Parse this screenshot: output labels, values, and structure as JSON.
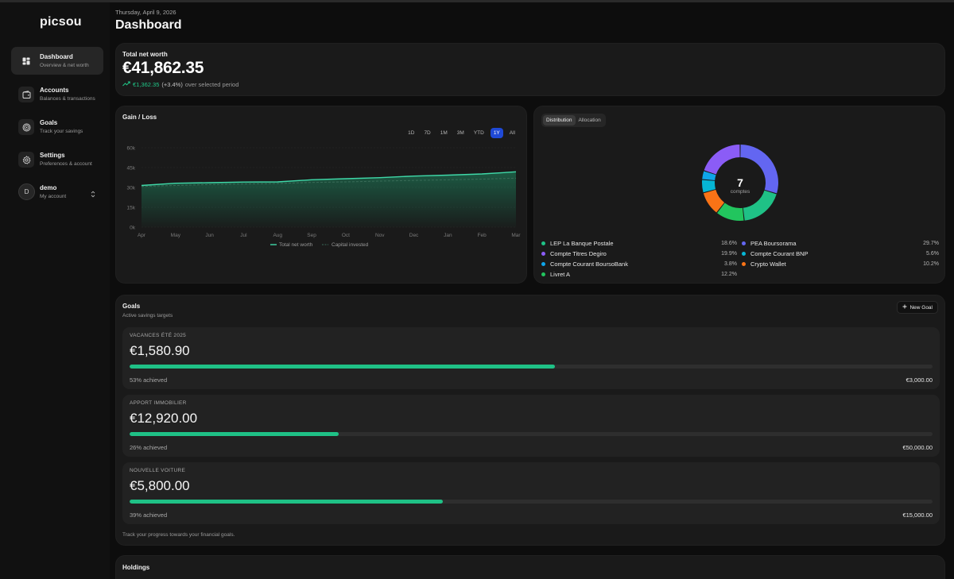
{
  "app": {
    "name": "picsou"
  },
  "sidebar": {
    "items": [
      {
        "label": "Dashboard",
        "sub": "Overview & net worth"
      },
      {
        "label": "Accounts",
        "sub": "Balances & transactions"
      },
      {
        "label": "Goals",
        "sub": "Track your savings"
      },
      {
        "label": "Settings",
        "sub": "Preferences & account"
      }
    ],
    "user": {
      "initial": "D",
      "name": "demo",
      "sub": "My account"
    }
  },
  "header": {
    "date": "Thursday, April 9, 2026",
    "title": "Dashboard"
  },
  "net_worth": {
    "label": "Total net worth",
    "value": "€41,862.35",
    "change": "€1,362.35",
    "change_pct": "(+3.4%)",
    "change_suffix": "over selected period",
    "positive_color": "#20c788"
  },
  "gain_loss": {
    "title": "Gain / Loss",
    "ranges": [
      "1D",
      "7D",
      "1M",
      "3M",
      "YTD",
      "1Y",
      "All"
    ],
    "active_range": "1Y",
    "legend": [
      "Total net worth",
      "Capital invested"
    ]
  },
  "chart_data": {
    "type": "area",
    "categories": [
      "Apr",
      "May",
      "Jun",
      "Jul",
      "Aug",
      "Sep",
      "Oct",
      "Nov",
      "Dec",
      "Jan",
      "Feb",
      "Mar"
    ],
    "series": [
      {
        "name": "Total net worth",
        "values": [
          31500,
          33200,
          33600,
          34100,
          34200,
          35800,
          36600,
          37400,
          38600,
          39300,
          40200,
          41800
        ],
        "color": "#3fd8a8"
      },
      {
        "name": "Capital invested",
        "values": [
          30800,
          31500,
          32200,
          32600,
          33000,
          33800,
          34200,
          34800,
          35300,
          35800,
          36300,
          37000
        ],
        "color": "#3a6b58"
      }
    ],
    "yticks": [
      "0k",
      "15k",
      "30k",
      "45k",
      "60k"
    ],
    "ylim": [
      0,
      60000
    ],
    "grid": true,
    "legend_position": "bottom"
  },
  "distribution": {
    "tabs": [
      "Distribution",
      "Allocation"
    ],
    "active_tab": "Distribution",
    "count": "7",
    "count_label": "comptes",
    "accounts": [
      {
        "name": "LEP La Banque Postale",
        "pct": "18.6%",
        "value": 18.6,
        "color": "#1fc186"
      },
      {
        "name": "PEA Boursorama",
        "pct": "29.7%",
        "value": 29.7,
        "color": "#6366f1"
      },
      {
        "name": "Compte Titres Degiro",
        "pct": "19.9%",
        "value": 19.9,
        "color": "#8b5cf6"
      },
      {
        "name": "Compte Courant BNP",
        "pct": "5.6%",
        "value": 5.6,
        "color": "#06b6d4"
      },
      {
        "name": "Compte Courant BoursoBank",
        "pct": "3.8%",
        "value": 3.8,
        "color": "#0ea5e9"
      },
      {
        "name": "Crypto Wallet",
        "pct": "10.2%",
        "value": 10.2,
        "color": "#f97316"
      },
      {
        "name": "Livret A",
        "pct": "12.2%",
        "value": 12.2,
        "color": "#22c55e"
      }
    ]
  },
  "goals": {
    "title": "Goals",
    "subtitle": "Active savings targets",
    "new_label": "New Goal",
    "items": [
      {
        "name": "VACANCES ÉTÉ 2025",
        "amount": "€1,580.90",
        "progress": 0.53,
        "achieved": "53% achieved",
        "target": "€3,000.00"
      },
      {
        "name": "APPORT IMMOBILIER",
        "amount": "€12,920.00",
        "progress": 0.26,
        "achieved": "26% achieved",
        "target": "€50,000.00"
      },
      {
        "name": "NOUVELLE VOITURE",
        "amount": "€5,800.00",
        "progress": 0.39,
        "achieved": "39% achieved",
        "target": "€15,000.00"
      }
    ],
    "footer": "Track your progress towards your financial goals."
  },
  "holdings": {
    "title": "Holdings"
  }
}
